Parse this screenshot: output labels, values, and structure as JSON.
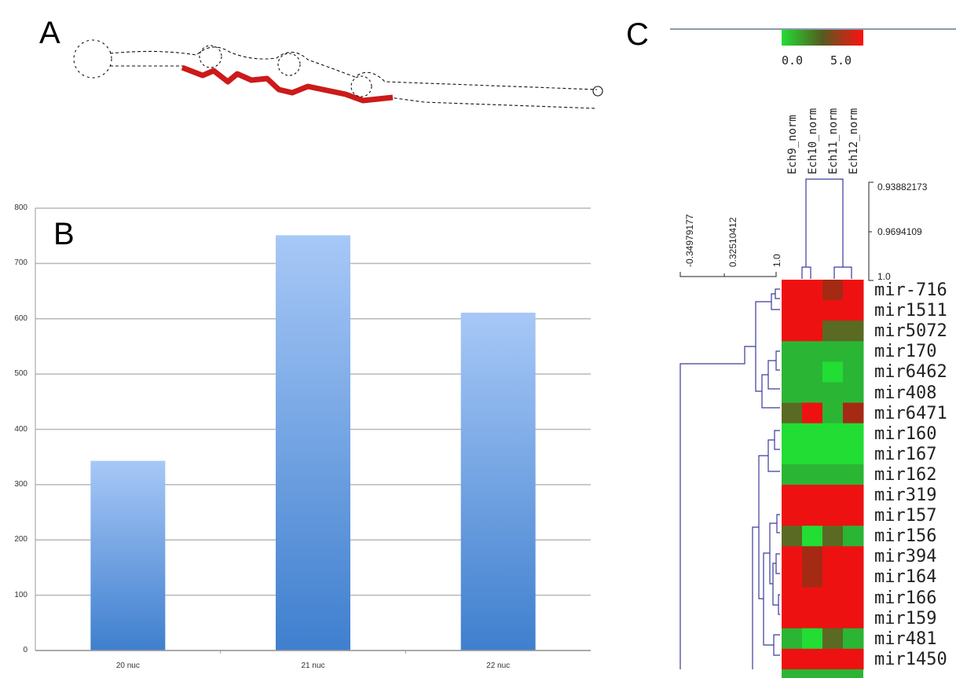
{
  "panels": {
    "a": "A",
    "b": "B",
    "c": "C"
  },
  "chart_data": [
    {
      "type": "bar",
      "categories": [
        "20 nuc",
        "21 nuc",
        "22 nuc"
      ],
      "values": [
        343,
        751,
        611
      ],
      "ylim": [
        0,
        800
      ],
      "yticks": [
        "0",
        "100",
        "200",
        "300",
        "400",
        "500",
        "600",
        "700",
        "800"
      ],
      "grid": true,
      "colors": {
        "top": "#a7c8f7",
        "bottom": "#3f7fce"
      }
    },
    {
      "type": "heatmap",
      "columns": [
        "Ech9_norm",
        "Ech10_norm",
        "Ech11_norm",
        "Ech12_norm"
      ],
      "rows": [
        "mir-716",
        "mir1511",
        "mir5072",
        "mir170",
        "mir6462",
        "mir408",
        "mir6471",
        "mir160",
        "mir167",
        "mir162",
        "mir319",
        "mir157",
        "mir156",
        "mir394",
        "mir164",
        "mir166",
        "mir159",
        "mir481",
        "mir1450"
      ],
      "color_scale": {
        "min_label": "0.0",
        "max_label": "5.0",
        "low": "#22dd33",
        "mid": "#4a5a22",
        "high": "#ee1111"
      },
      "col_dendrogram_labels": [
        "0.93882173",
        "0.9694109",
        "1.0"
      ],
      "row_dendrogram_labels": [
        "-0.34979177",
        "0.32510412",
        "1.0"
      ]
    }
  ]
}
